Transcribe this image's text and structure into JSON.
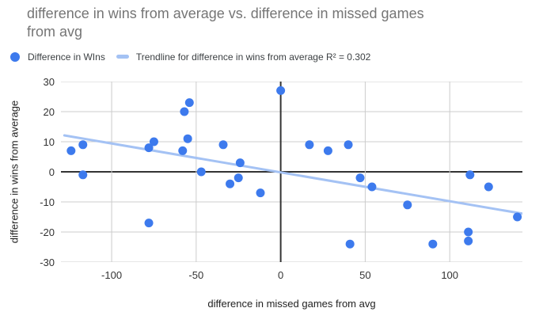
{
  "title_lines": [
    "difference in wins from average vs. difference in missed games",
    "from avg"
  ],
  "legend": {
    "series_label": "Difference in WIns",
    "trendline_label": "Trendline for difference in wins from average R² = 0.302"
  },
  "colors": {
    "title_text": "#757575",
    "legend_text": "#3c4043",
    "axis_title": "#222222",
    "tick_text": "#333333",
    "gridline": "#cccccc",
    "zero_axis": "#333333",
    "point": "#3d7aed",
    "trendline": "#a4c2f4"
  },
  "chart_data": {
    "type": "scatter",
    "title": "difference in wins from average vs. difference in missed games from avg",
    "xlabel": "difference in missed games from avg",
    "ylabel": "difference in wins from average",
    "xlim": [
      -130,
      143
    ],
    "ylim": [
      -30,
      30
    ],
    "x_ticks": [
      -100,
      -50,
      0,
      50,
      100
    ],
    "y_ticks": [
      30,
      20,
      10,
      0,
      -10,
      -20,
      -30
    ],
    "grid": true,
    "legend_position": "top-left",
    "series": [
      {
        "name": "Difference in WIns",
        "points": [
          [
            -124,
            7
          ],
          [
            -117,
            9
          ],
          [
            -117,
            -1
          ],
          [
            -78,
            8
          ],
          [
            -75,
            10
          ],
          [
            -78,
            -17
          ],
          [
            -58,
            7
          ],
          [
            -57,
            20
          ],
          [
            -55,
            11
          ],
          [
            -54,
            23
          ],
          [
            -47,
            0
          ],
          [
            -34,
            9
          ],
          [
            -30,
            -4
          ],
          [
            -25,
            -2
          ],
          [
            -24,
            3
          ],
          [
            -12,
            -7
          ],
          [
            0,
            27
          ],
          [
            17,
            9
          ],
          [
            28,
            7
          ],
          [
            40,
            9
          ],
          [
            41,
            -24
          ],
          [
            47,
            -2
          ],
          [
            54,
            -5
          ],
          [
            75,
            -11
          ],
          [
            90,
            -24
          ],
          [
            111,
            -20
          ],
          [
            111,
            -23
          ],
          [
            112,
            -1
          ],
          [
            123,
            -5
          ],
          [
            140,
            -15
          ]
        ]
      }
    ],
    "trendline": {
      "for_series": "difference in wins from average",
      "r_squared": 0.302,
      "x1": -128,
      "y1": 12.1,
      "x2": 143,
      "y2": -13.9
    }
  }
}
